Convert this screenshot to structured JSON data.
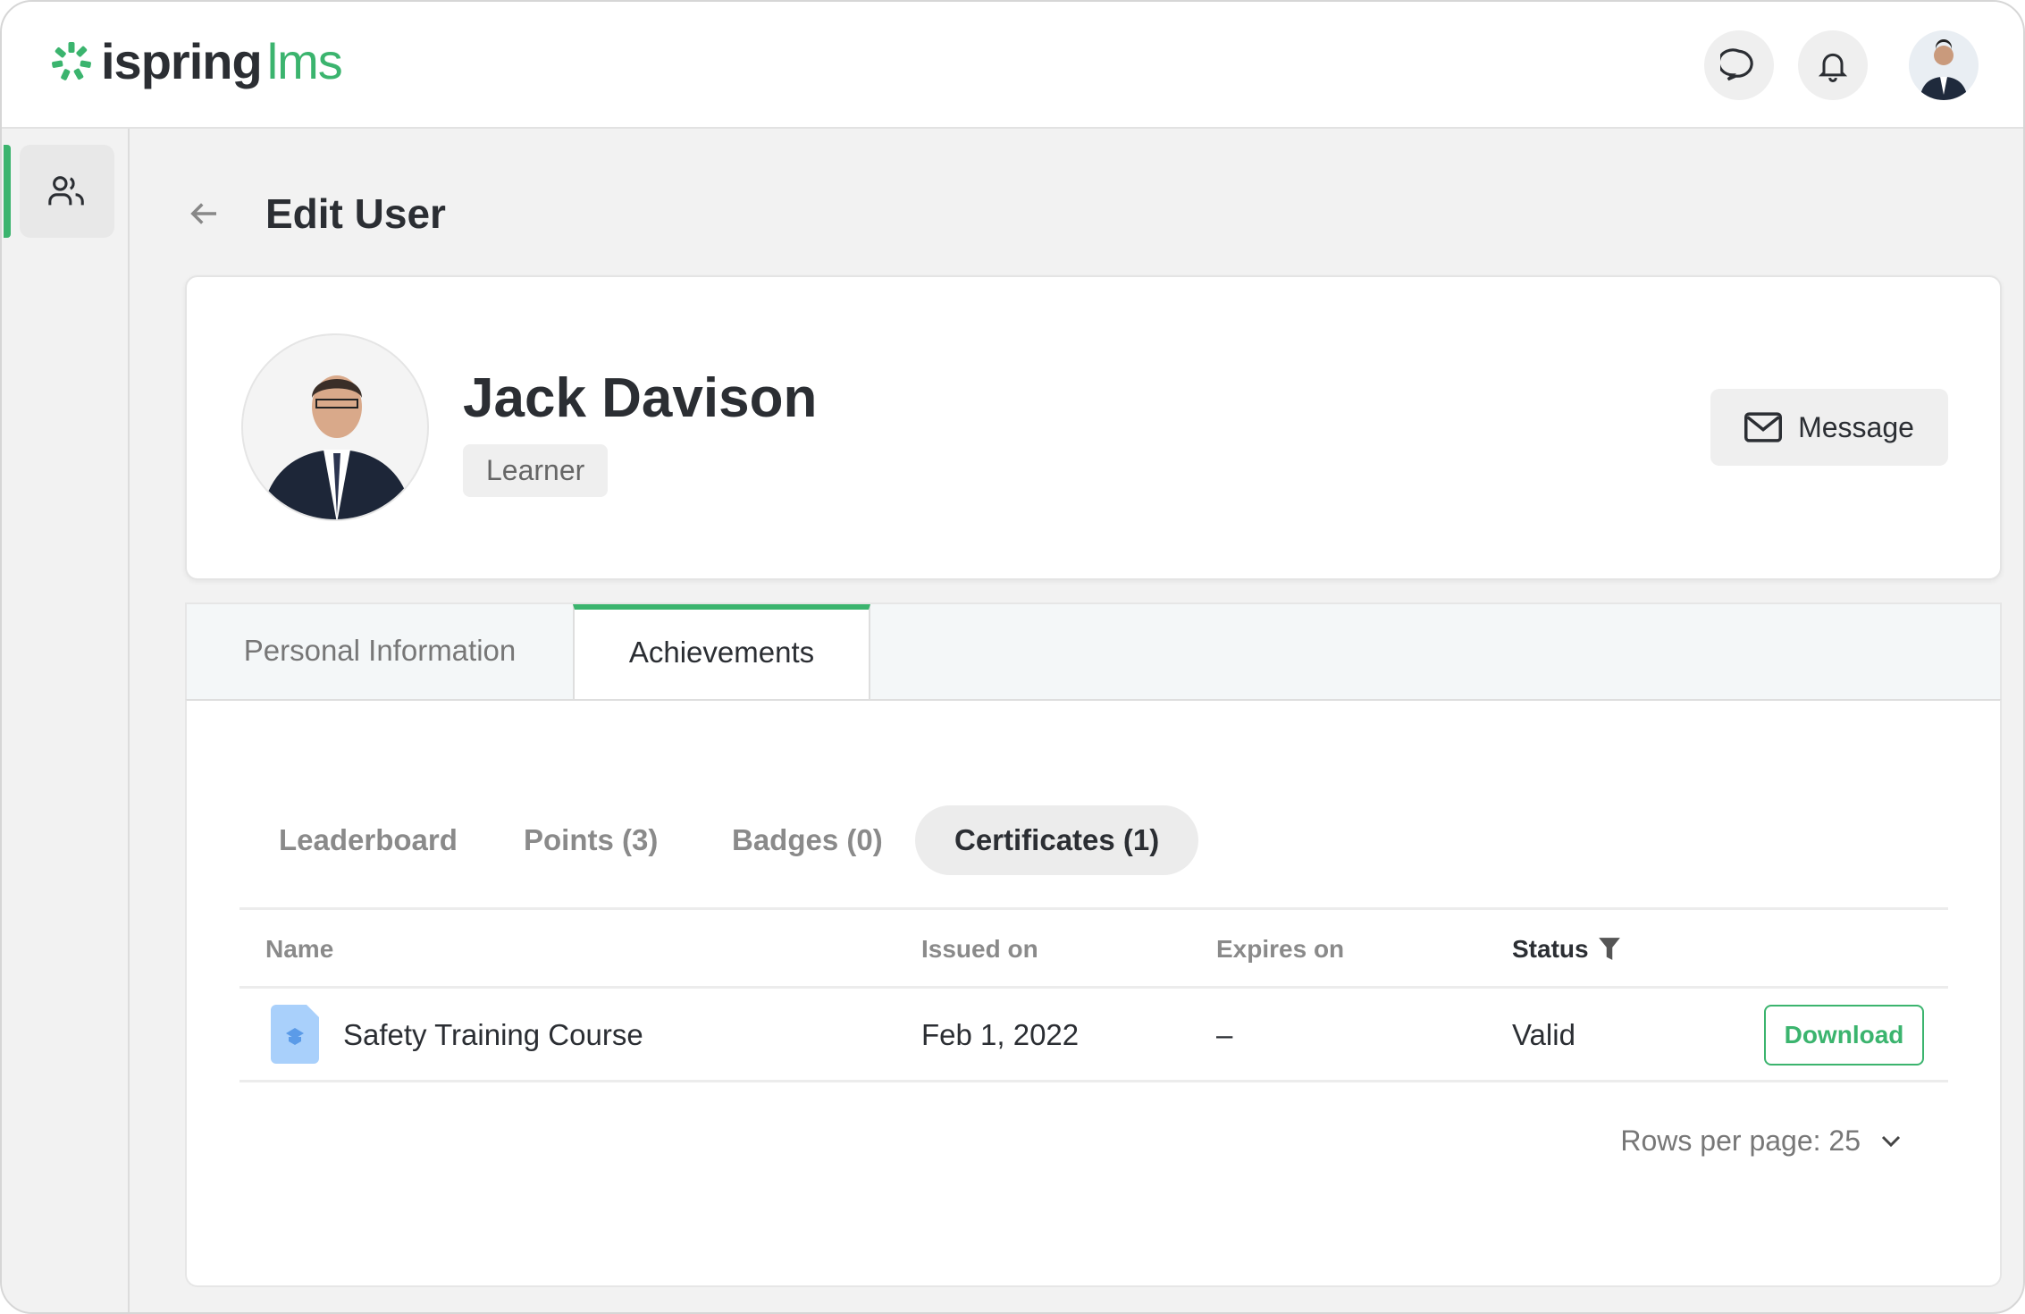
{
  "app": {
    "logo_word1": "ispring",
    "logo_word2": "lms",
    "brand_color": "#3bb46e"
  },
  "header": {
    "icons": [
      "chat-icon",
      "bell-icon",
      "user-avatar"
    ]
  },
  "sidebar": {
    "items": [
      {
        "icon": "users-icon",
        "active": true
      }
    ]
  },
  "page": {
    "title": "Edit User"
  },
  "profile": {
    "name": "Jack Davison",
    "role": "Learner",
    "message_label": "Message"
  },
  "tabs": [
    {
      "label": "Personal Information",
      "active": false
    },
    {
      "label": "Achievements",
      "active": true
    }
  ],
  "subtabs": [
    {
      "label": "Leaderboard"
    },
    {
      "label": "Points (3)"
    },
    {
      "label": "Badges (0)"
    },
    {
      "label": "Certificates (1)",
      "active": true
    }
  ],
  "table": {
    "columns": [
      "Name",
      "Issued on",
      "Expires on",
      "Status"
    ],
    "rows": [
      {
        "name": "Safety Training Course",
        "issued": "Feb 1, 2022",
        "expires": "–",
        "status": "Valid",
        "action": "Download"
      }
    ]
  },
  "pagination": {
    "rows_per_page_label": "Rows per page: 25"
  }
}
